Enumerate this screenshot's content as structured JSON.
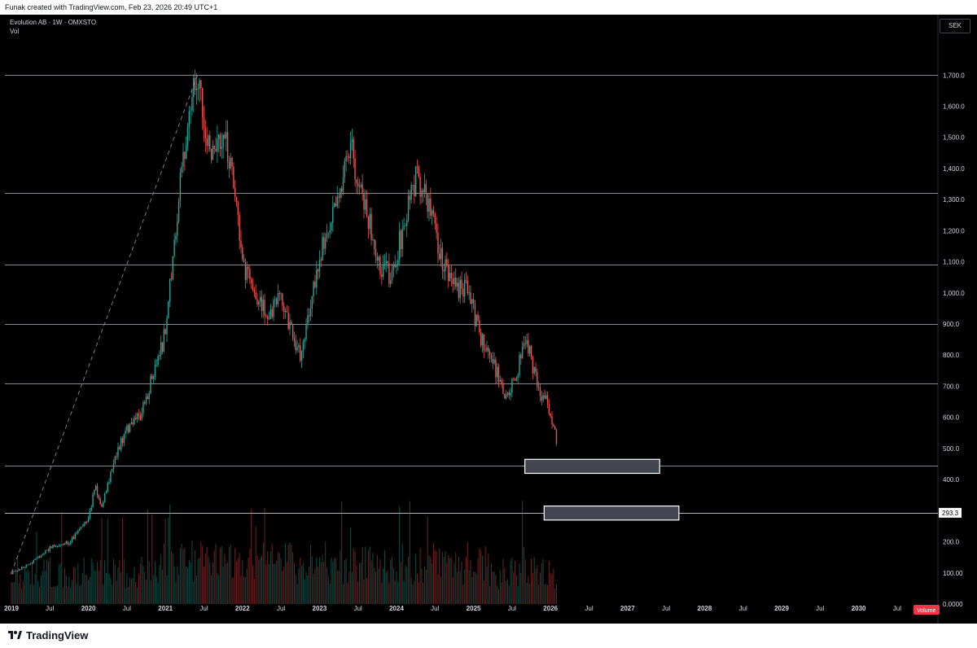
{
  "header": {
    "attribution": "Funak created with TradingView.com, Feb 23, 2026 20:49 UTC+1"
  },
  "legend": {
    "symbol_line": "Evolution AB · 1W · OMXSTO",
    "vol_label": "Vol"
  },
  "currency": "SEK",
  "brand": {
    "name": "TradingView"
  },
  "colors": {
    "up": "#26a69a",
    "down": "#ef5350",
    "gridline": "#b2b5be",
    "volume_badge": "#f23645",
    "background": "#000000"
  },
  "chart_data": {
    "type": "candlestick",
    "interval": "1W",
    "currency": "SEK",
    "ylim": [
      0,
      1700
    ],
    "y_ticks": [
      "1,700.0",
      "1,600.0",
      "1,500.0",
      "1,400.0",
      "1,300.0",
      "1,200.0",
      "1,100.0",
      "1,000.0",
      "900.0",
      "800.0",
      "700.0",
      "600.0",
      "500.0",
      "400.0",
      "300.0",
      "200.0",
      "100.00",
      "0.0000"
    ],
    "x_ticks": [
      "2019",
      "Jul",
      "2020",
      "Jul",
      "2021",
      "Jul",
      "2022",
      "Jul",
      "2023",
      "Jul",
      "2024",
      "Jul",
      "2025",
      "Jul",
      "2026",
      "Jul",
      "2027",
      "Jul",
      "2028",
      "Jul",
      "2029",
      "Jul",
      "2030",
      "Jul"
    ],
    "horizontal_levels": [
      1700,
      1320,
      1090,
      900,
      710,
      445,
      293.3
    ],
    "price_label": "293.3",
    "volume_label": "Volume",
    "zones": [
      {
        "x_start": "2025-09",
        "x_end": "2027-06",
        "y_low": 420,
        "y_high": 465
      },
      {
        "x_start": "2025-12",
        "x_end": "2027-09",
        "y_low": 270,
        "y_high": 315
      }
    ],
    "trendline": {
      "from": {
        "date": "2019-01",
        "price": 100
      },
      "to": {
        "date": "2021-06",
        "price": 1700
      }
    },
    "price_path": [
      [
        "2019-01",
        100
      ],
      [
        "2019-04",
        130
      ],
      [
        "2019-07",
        180
      ],
      [
        "2019-10",
        200
      ],
      [
        "2020-01",
        270
      ],
      [
        "2020-02",
        380
      ],
      [
        "2020-03",
        300
      ],
      [
        "2020-05",
        470
      ],
      [
        "2020-07",
        560
      ],
      [
        "2020-09",
        600
      ],
      [
        "2020-11",
        730
      ],
      [
        "2021-01",
        870
      ],
      [
        "2021-03",
        1300
      ],
      [
        "2021-05",
        1620
      ],
      [
        "2021-06",
        1690
      ],
      [
        "2021-08",
        1450
      ],
      [
        "2021-10",
        1530
      ],
      [
        "2021-12",
        1300
      ],
      [
        "2022-01",
        1080
      ],
      [
        "2022-03",
        1000
      ],
      [
        "2022-05",
        920
      ],
      [
        "2022-07",
        1000
      ],
      [
        "2022-09",
        850
      ],
      [
        "2022-10",
        800
      ],
      [
        "2022-12",
        1000
      ],
      [
        "2023-02",
        1200
      ],
      [
        "2023-04",
        1330
      ],
      [
        "2023-06",
        1450
      ],
      [
        "2023-08",
        1300
      ],
      [
        "2023-10",
        1100
      ],
      [
        "2023-12",
        1050
      ],
      [
        "2024-02",
        1200
      ],
      [
        "2024-04",
        1370
      ],
      [
        "2024-06",
        1300
      ],
      [
        "2024-08",
        1100
      ],
      [
        "2024-10",
        1020
      ],
      [
        "2024-12",
        1010
      ],
      [
        "2025-02",
        860
      ],
      [
        "2025-04",
        780
      ],
      [
        "2025-06",
        660
      ],
      [
        "2025-08",
        760
      ],
      [
        "2025-09",
        870
      ],
      [
        "2025-11",
        700
      ],
      [
        "2026-01",
        620
      ],
      [
        "2026-02",
        520
      ]
    ]
  }
}
